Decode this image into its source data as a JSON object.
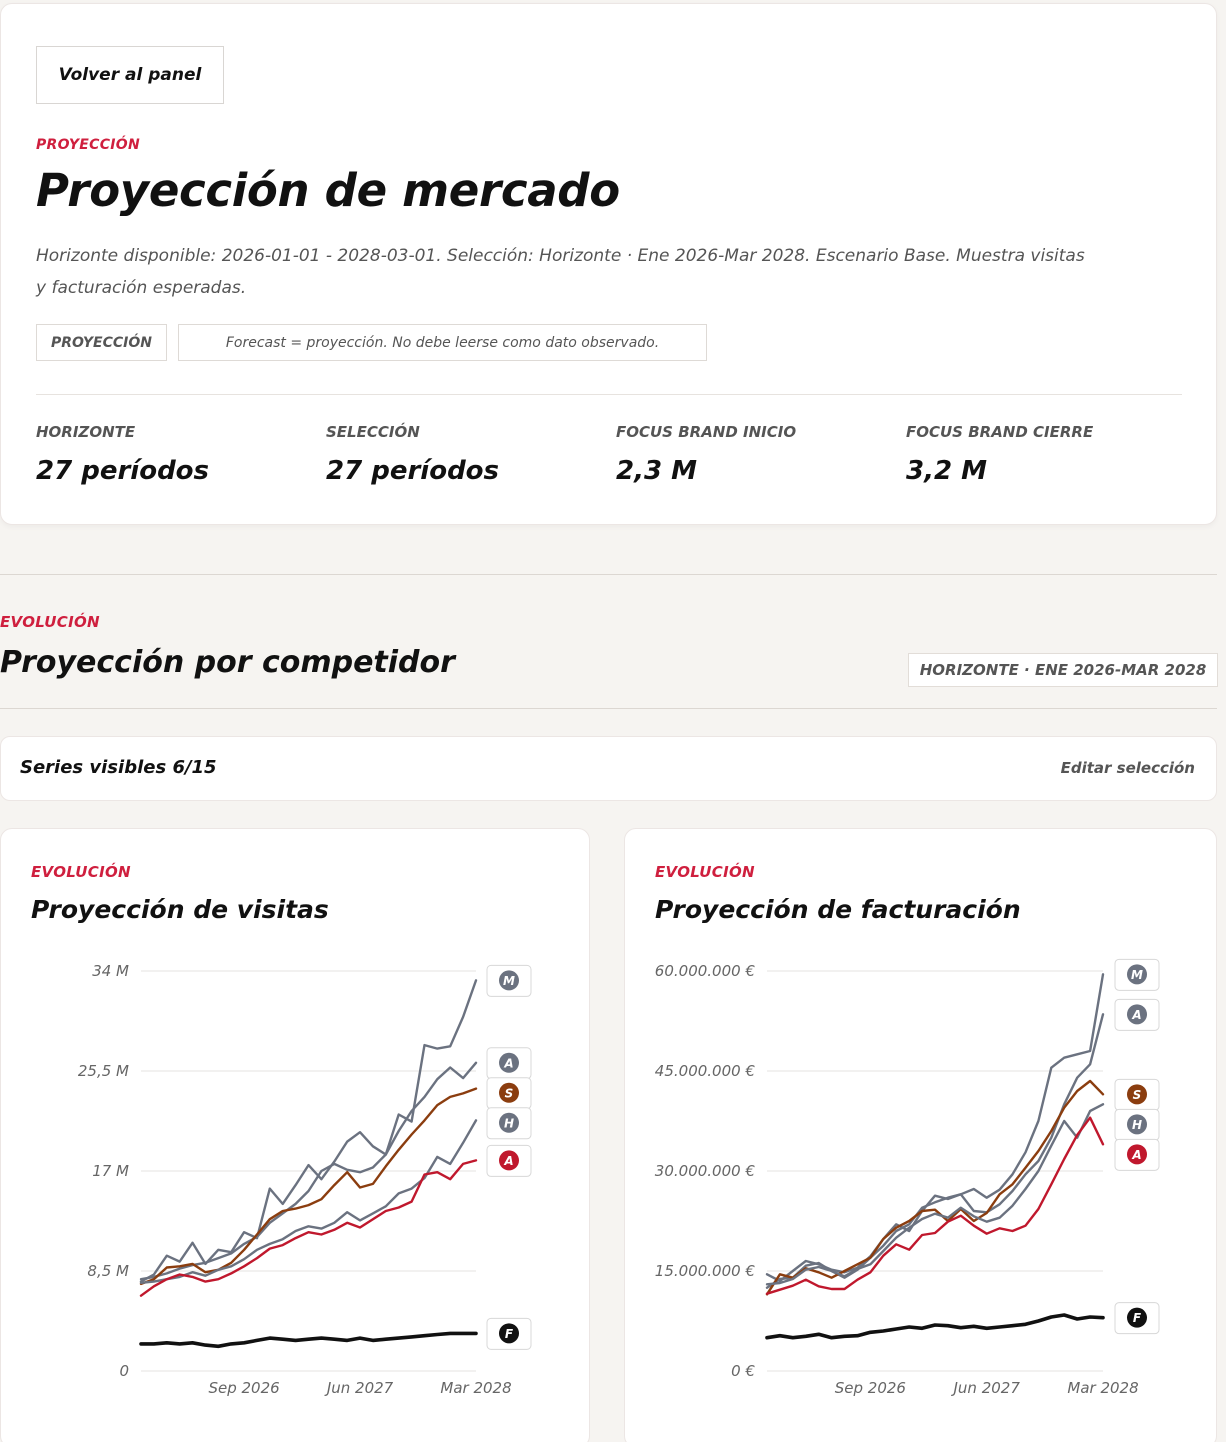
{
  "header": {
    "back_label": "Volver al panel",
    "eyebrow": "PROYECCIÓN",
    "title": "Proyección de mercado",
    "description": "Horizonte disponible: 2026-01-01 - 2028-03-01. Selección: Horizonte · Ene 2026-Mar 2028. Escenario Base. Muestra visitas y facturación esperadas.",
    "tag_label": "PROYECCIÓN",
    "tag_note": "Forecast = proyección. No debe leerse como dato observado."
  },
  "stats": [
    {
      "label": "HORIZONTE",
      "value": "27 períodos"
    },
    {
      "label": "SELECCIÓN",
      "value": "27 períodos"
    },
    {
      "label": "FOCUS BRAND INICIO",
      "value": "2,3 M"
    },
    {
      "label": "FOCUS BRAND CIERRE",
      "value": "3,2 M"
    }
  ],
  "section": {
    "eyebrow": "EVOLUCIÓN",
    "title": "Proyección por competidor",
    "horizon": "HORIZONTE · ENE 2026-MAR 2028",
    "series_visible": "Series visibles 6/15",
    "edit_label": "Editar selección"
  },
  "colors": {
    "accent": "#cf1f3e",
    "grey_series": "#6b7280",
    "brown_series": "#8b3d0f",
    "red_series": "#c0182d",
    "focus_series": "#111111"
  },
  "chart_data": [
    {
      "type": "line",
      "eyebrow": "EVOLUCIÓN",
      "title": "Proyección de visitas",
      "x_range": [
        "2026-01",
        "2028-03"
      ],
      "x_ticks": [
        "Sep 2026",
        "Jun 2027",
        "Mar 2028"
      ],
      "y_ticks": [
        "0",
        "8,5 M",
        "17 M",
        "25,5 M",
        "34 M"
      ],
      "ylim": [
        0,
        34000000
      ],
      "grid": true,
      "series": [
        {
          "name": "M",
          "color": "#6b7280",
          "values": [
            7.6,
            8.2,
            9.8,
            9.3,
            10.9,
            9.1,
            10.3,
            10.1,
            11.8,
            11.3,
            15.5,
            14.2,
            15.8,
            17.5,
            16.3,
            17.8,
            19.5,
            20.3,
            19.1,
            18.4,
            21.8,
            21.2,
            27.7,
            27.4,
            27.6,
            30.1,
            33.2
          ]
        },
        {
          "name": "A",
          "color": "#6b7280",
          "values": [
            7.8,
            8.0,
            8.3,
            8.7,
            9.0,
            9.2,
            9.6,
            10.0,
            10.8,
            11.4,
            12.6,
            13.4,
            14.2,
            15.3,
            17.0,
            17.6,
            17.1,
            16.9,
            17.3,
            18.4,
            20.4,
            22.1,
            23.3,
            24.8,
            25.8,
            24.9,
            26.2
          ]
        },
        {
          "name": "S",
          "color": "#8b3d0f",
          "values": [
            7.4,
            7.8,
            8.8,
            8.9,
            9.1,
            8.4,
            8.6,
            9.2,
            10.3,
            11.6,
            12.9,
            13.6,
            13.8,
            14.1,
            14.6,
            15.8,
            16.9,
            15.6,
            15.9,
            17.4,
            18.8,
            20.1,
            21.3,
            22.6,
            23.3,
            23.6,
            24.0
          ]
        },
        {
          "name": "H",
          "color": "#6b7280",
          "values": [
            7.5,
            7.6,
            7.8,
            8.0,
            8.4,
            8.1,
            8.6,
            8.9,
            9.5,
            10.3,
            10.8,
            11.2,
            11.9,
            12.3,
            12.1,
            12.6,
            13.5,
            12.8,
            13.4,
            14.0,
            15.1,
            15.5,
            16.4,
            18.2,
            17.6,
            19.4,
            21.3
          ]
        },
        {
          "name": "A",
          "color": "#c0182d",
          "values": [
            6.4,
            7.2,
            7.8,
            8.2,
            8.0,
            7.6,
            7.8,
            8.3,
            8.9,
            9.6,
            10.4,
            10.7,
            11.3,
            11.8,
            11.6,
            12.0,
            12.6,
            12.2,
            12.9,
            13.6,
            13.9,
            14.4,
            16.7,
            16.9,
            16.3,
            17.6,
            17.9
          ]
        },
        {
          "name": "F",
          "color": "#111111",
          "values": [
            2.3,
            2.3,
            2.4,
            2.3,
            2.4,
            2.2,
            2.1,
            2.3,
            2.4,
            2.6,
            2.8,
            2.7,
            2.6,
            2.7,
            2.8,
            2.7,
            2.6,
            2.8,
            2.6,
            2.7,
            2.8,
            2.9,
            3.0,
            3.1,
            3.2,
            3.2,
            3.2
          ]
        }
      ],
      "badges": [
        "M",
        "A",
        "S",
        "H",
        "A",
        "F"
      ]
    },
    {
      "type": "line",
      "eyebrow": "EVOLUCIÓN",
      "title": "Proyección de facturación",
      "x_range": [
        "2026-01",
        "2028-03"
      ],
      "x_ticks": [
        "Sep 2026",
        "Jun 2027",
        "Mar 2028"
      ],
      "y_ticks": [
        "0 €",
        "15.000.000 €",
        "30.000.000 €",
        "45.000.000 €",
        "60.000.000 €"
      ],
      "ylim": [
        0,
        60000000
      ],
      "grid": true,
      "series": [
        {
          "name": "M",
          "color": "#6b7280",
          "values": [
            14.5,
            13.5,
            15.0,
            16.5,
            16.0,
            15.2,
            14.8,
            15.5,
            17.2,
            19.8,
            22.0,
            21.0,
            24.0,
            26.3,
            25.8,
            26.5,
            27.3,
            26.0,
            27.2,
            29.5,
            32.8,
            37.5,
            45.5,
            47.0,
            47.5,
            48.0,
            59.5
          ]
        },
        {
          "name": "A",
          "color": "#6b7280",
          "values": [
            12.5,
            13.8,
            14.0,
            15.8,
            16.2,
            15.0,
            14.0,
            15.2,
            17.0,
            18.8,
            21.0,
            22.0,
            24.5,
            25.3,
            26.0,
            26.5,
            24.0,
            23.8,
            25.0,
            27.0,
            29.5,
            31.5,
            35.0,
            40.0,
            44.0,
            46.0,
            53.5
          ]
        },
        {
          "name": "S",
          "color": "#8b3d0f",
          "values": [
            11.5,
            14.5,
            14.0,
            15.4,
            14.8,
            14.0,
            15.0,
            16.0,
            17.0,
            19.8,
            21.5,
            22.5,
            24.0,
            24.2,
            22.5,
            24.3,
            22.5,
            23.7,
            26.5,
            28.0,
            30.5,
            33.0,
            36.0,
            39.5,
            42.0,
            43.5,
            41.5
          ]
        },
        {
          "name": "H",
          "color": "#6b7280",
          "values": [
            13.0,
            13.2,
            13.8,
            15.2,
            15.6,
            15.0,
            14.2,
            15.3,
            16.0,
            18.0,
            20.0,
            21.5,
            22.8,
            23.6,
            23.0,
            24.5,
            23.2,
            22.4,
            23.0,
            24.8,
            27.3,
            30.0,
            33.8,
            37.5,
            35.0,
            39.0,
            40.0
          ]
        },
        {
          "name": "A",
          "color": "#c0182d",
          "values": [
            11.6,
            12.2,
            12.8,
            13.7,
            12.7,
            12.3,
            12.3,
            13.7,
            14.8,
            17.3,
            19.0,
            18.2,
            20.4,
            20.7,
            22.4,
            23.3,
            21.8,
            20.6,
            21.4,
            21.0,
            21.8,
            24.3,
            28.0,
            31.8,
            35.4,
            38.0,
            34.0
          ]
        },
        {
          "name": "F",
          "color": "#111111",
          "values": [
            5.0,
            5.3,
            5.0,
            5.2,
            5.5,
            5.0,
            5.2,
            5.3,
            5.8,
            6.0,
            6.3,
            6.6,
            6.4,
            6.9,
            6.8,
            6.5,
            6.7,
            6.4,
            6.6,
            6.8,
            7.0,
            7.5,
            8.1,
            8.4,
            7.8,
            8.1,
            8.0
          ]
        }
      ],
      "badges": [
        "M",
        "A",
        "S",
        "A",
        "F"
      ]
    }
  ]
}
